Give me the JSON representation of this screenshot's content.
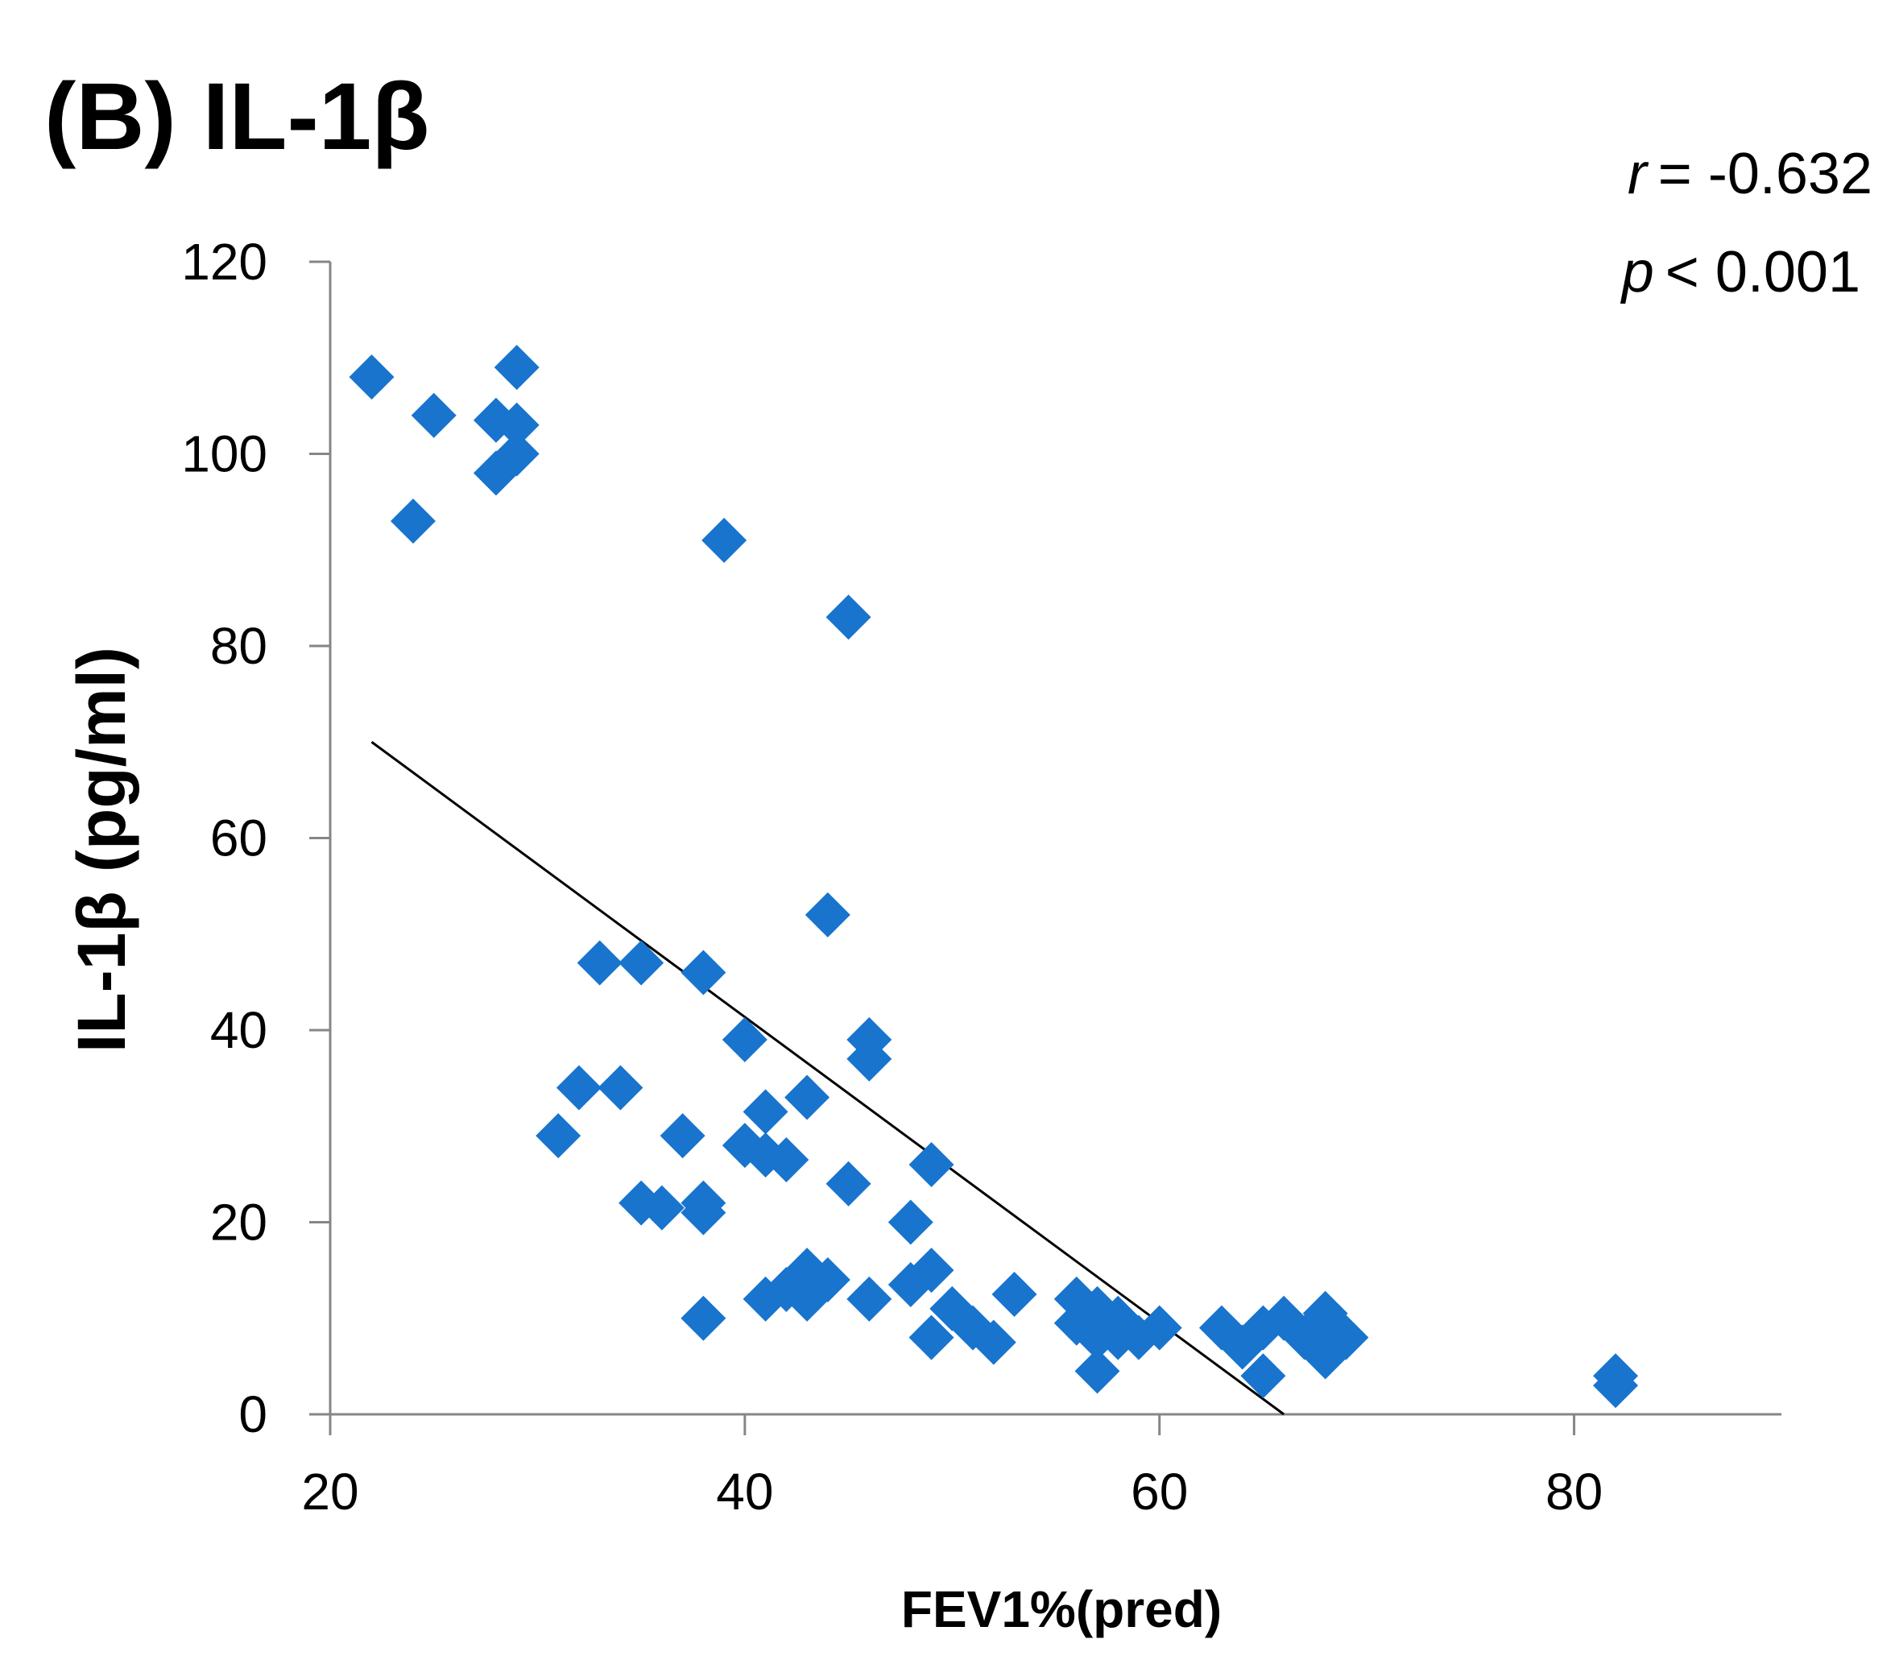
{
  "chart_data": {
    "type": "scatter",
    "title": "(B) IL-1β",
    "xlabel": "FEV1%(pred)",
    "ylabel": "IL-1β (pg/ml)",
    "xlim": [
      20,
      90
    ],
    "ylim": [
      0,
      120
    ],
    "x_ticks": [
      20,
      40,
      60,
      80
    ],
    "y_ticks": [
      0,
      20,
      40,
      60,
      80,
      100,
      120
    ],
    "grid": false,
    "annotations": {
      "r_label": "r",
      "r_value": "=  -0.632",
      "p_label": "p",
      "p_value": "< 0.001"
    },
    "marker_color": "#1874CD",
    "series": [
      {
        "name": "IL-1β",
        "x": [
          22,
          24,
          25,
          28,
          29,
          28,
          29,
          29,
          39,
          45,
          44,
          33,
          35,
          38,
          40,
          46,
          46,
          32,
          34,
          31,
          37,
          43,
          41,
          42,
          40,
          41,
          49,
          45,
          35,
          36,
          38,
          38,
          48,
          49,
          48,
          44,
          43,
          43,
          42,
          41,
          46,
          38,
          50,
          51,
          49,
          52,
          53,
          56,
          57,
          58,
          57,
          57,
          56,
          59,
          60,
          58,
          63,
          64,
          65,
          65,
          66,
          67,
          68,
          68,
          69,
          82,
          82
        ],
        "y": [
          108,
          93,
          104,
          103.5,
          109,
          98,
          103,
          100,
          91,
          83,
          52,
          47,
          47,
          46,
          39,
          39,
          37,
          34,
          34,
          29,
          29,
          33,
          31.5,
          26.5,
          28,
          27,
          26,
          24,
          22,
          21.5,
          22,
          21,
          20,
          15,
          13.5,
          14,
          15,
          12,
          13,
          12,
          12,
          10,
          11,
          9,
          8,
          7.5,
          12.5,
          12,
          11,
          10,
          8,
          4.5,
          9.5,
          8,
          9,
          8,
          9,
          7,
          9,
          4,
          10,
          8,
          10.5,
          6,
          8,
          4,
          3
        ]
      }
    ],
    "trendline": {
      "x": [
        22,
        66
      ],
      "y": [
        70,
        0
      ]
    }
  }
}
